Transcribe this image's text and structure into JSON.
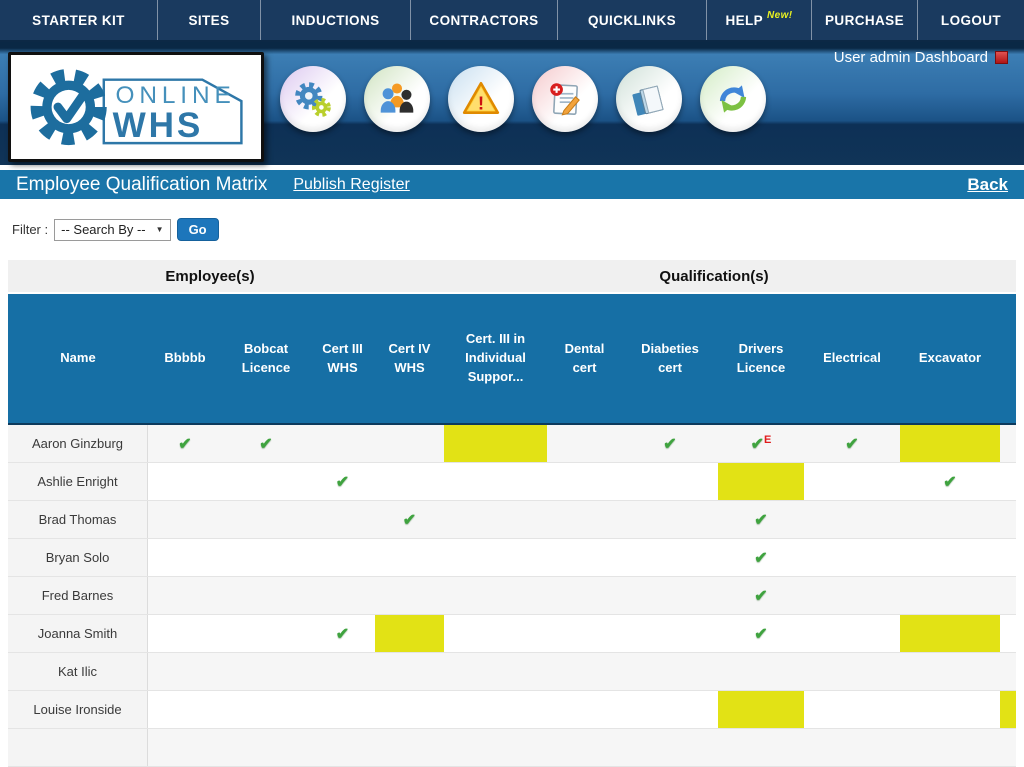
{
  "nav": {
    "items": [
      {
        "label": "STARTER KIT"
      },
      {
        "label": "SITES"
      },
      {
        "label": "INDUCTIONS"
      },
      {
        "label": "CONTRACTORS"
      },
      {
        "label": "QUICKLINKS"
      },
      {
        "label": "HELP",
        "badge": "New!"
      },
      {
        "label": "PURCHASE"
      },
      {
        "label": "LOGOUT"
      }
    ]
  },
  "header": {
    "user_text": "User admin Dashboard",
    "logo": {
      "line1": "ONLINE",
      "line2": "WHS"
    },
    "icons": [
      {
        "name": "settings"
      },
      {
        "name": "users"
      },
      {
        "name": "warning"
      },
      {
        "name": "add-note"
      },
      {
        "name": "books"
      },
      {
        "name": "refresh"
      }
    ]
  },
  "title_bar": {
    "title": "Employee Qualification Matrix",
    "publish_link": "Publish Register",
    "back_link": "Back"
  },
  "filter": {
    "label": "Filter :",
    "select_value": "-- Search By --",
    "go_label": "Go"
  },
  "matrix": {
    "group_headers": {
      "employees": "Employee(s)",
      "qualifications": "Qualification(s)"
    },
    "columns": [
      {
        "id": "name",
        "label": "Name"
      },
      {
        "id": "bbbbb",
        "label": "Bbbbb"
      },
      {
        "id": "bobcat",
        "label": "Bobcat Licence"
      },
      {
        "id": "cert3whs",
        "label": "Cert III WHS"
      },
      {
        "id": "cert4whs",
        "label": "Cert IV WHS"
      },
      {
        "id": "cert3ind",
        "label": "Cert. III in Individual Suppor..."
      },
      {
        "id": "dental",
        "label": "Dental cert"
      },
      {
        "id": "diabeties",
        "label": "Diabeties cert"
      },
      {
        "id": "drivers",
        "label": "Drivers Licence"
      },
      {
        "id": "electrical",
        "label": "Electrical"
      },
      {
        "id": "excavator",
        "label": "Excavator"
      },
      {
        "id": "clipped",
        "label": ""
      }
    ],
    "rows": [
      {
        "name": "Aaron Ginzburg",
        "cells": {
          "bbbbb": "check",
          "bobcat": "check",
          "cert3ind": "yellow",
          "diabeties": "check",
          "drivers": "check-e",
          "electrical": "check",
          "excavator": "yellow"
        }
      },
      {
        "name": "Ashlie Enright",
        "cells": {
          "cert3whs": "check",
          "drivers": "yellow",
          "excavator": "check"
        }
      },
      {
        "name": "Brad Thomas",
        "cells": {
          "cert4whs": "check",
          "drivers": "check"
        }
      },
      {
        "name": "Bryan Solo",
        "cells": {
          "drivers": "check"
        }
      },
      {
        "name": "Fred Barnes",
        "cells": {
          "drivers": "check"
        }
      },
      {
        "name": "Joanna Smith",
        "cells": {
          "cert3whs": "check",
          "cert4whs": "yellow",
          "drivers": "check",
          "excavator": "yellow"
        }
      },
      {
        "name": "Kat Ilic",
        "cells": {}
      },
      {
        "name": "Louise Ironside",
        "cells": {
          "drivers": "yellow",
          "clipped": "yellow"
        }
      },
      {
        "name": "",
        "cells": {}
      }
    ],
    "legend": {
      "check_symbol": "✔",
      "expiring_marker": "E"
    }
  },
  "colors": {
    "nav_bg": "#1a3a5f",
    "band_blue": "#2e6ca4",
    "title_bar_bg": "#1975a9",
    "table_header_bg": "#166fa5",
    "highlight_yellow": "#e2e215",
    "check_green": "#3fa33f",
    "expiry_red": "#e01b1b",
    "badge_yellow": "#e9f021"
  }
}
